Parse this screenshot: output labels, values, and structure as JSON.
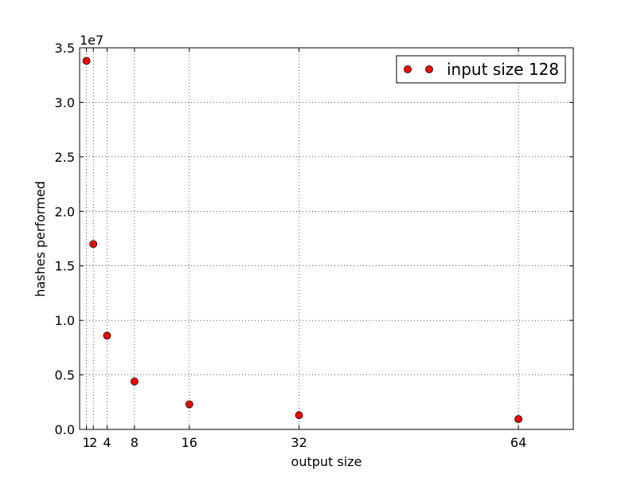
{
  "chart_data": {
    "type": "scatter",
    "xlabel": "output size",
    "ylabel": "hashes performed",
    "y_offset_label": "1e7",
    "xlim": [
      0,
      72
    ],
    "ylim": [
      0,
      35000000
    ],
    "x_ticks": [
      {
        "value": 1,
        "label": "1"
      },
      {
        "value": 2,
        "label": "2"
      },
      {
        "value": 4,
        "label": "4"
      },
      {
        "value": 8,
        "label": "8"
      },
      {
        "value": 16,
        "label": "16"
      },
      {
        "value": 32,
        "label": "32"
      },
      {
        "value": 64,
        "label": "64"
      }
    ],
    "y_ticks": [
      {
        "value": 0,
        "label": "0.0"
      },
      {
        "value": 5000000,
        "label": "0.5"
      },
      {
        "value": 10000000,
        "label": "1.0"
      },
      {
        "value": 15000000,
        "label": "1.5"
      },
      {
        "value": 20000000,
        "label": "2.0"
      },
      {
        "value": 25000000,
        "label": "2.5"
      },
      {
        "value": 30000000,
        "label": "3.0"
      },
      {
        "value": 35000000,
        "label": "3.5"
      }
    ],
    "grid": true,
    "grid_style": "dotted",
    "legend_position": "top-right",
    "series": [
      {
        "name": "input size 128",
        "marker": "circle",
        "color": "#ff0000",
        "edge_color": "#000000",
        "x": [
          1,
          2,
          4,
          8,
          16,
          32,
          64
        ],
        "y": [
          33800000,
          17000000,
          8600000,
          4400000,
          2300000,
          1300000,
          950000
        ]
      }
    ]
  }
}
